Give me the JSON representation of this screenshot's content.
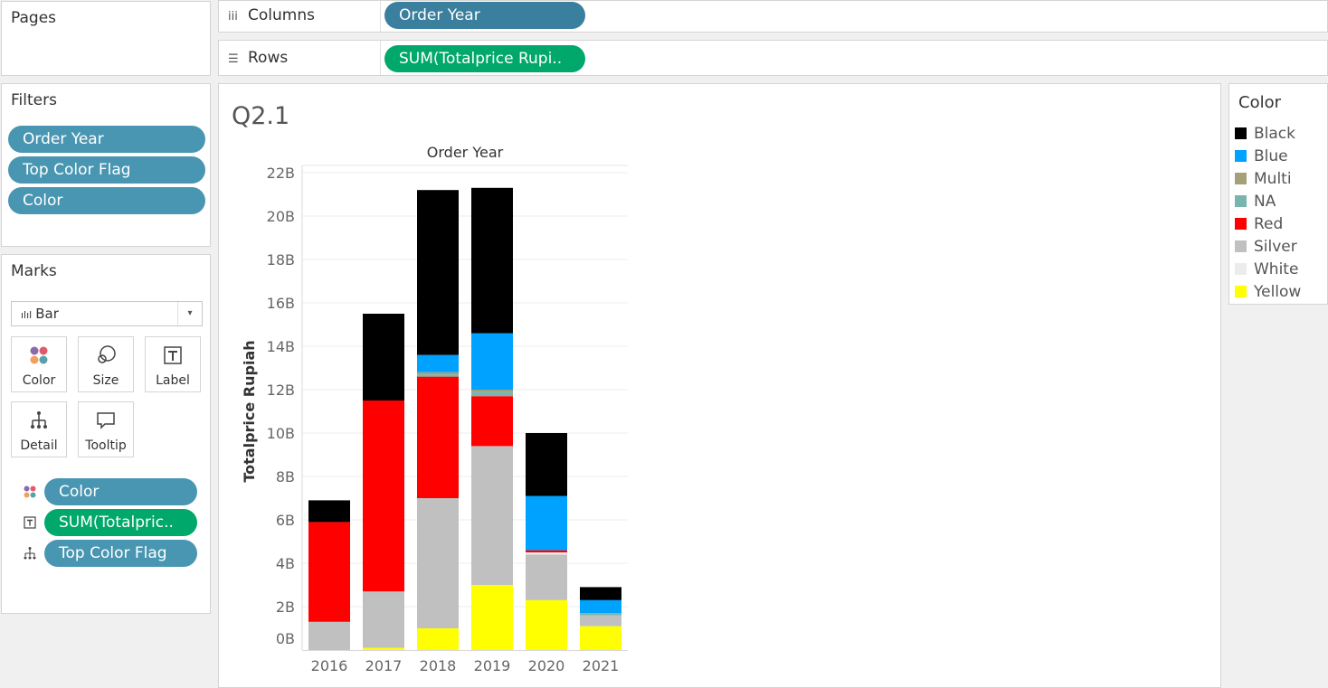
{
  "pages": {
    "title": "Pages"
  },
  "shelves": {
    "columns": {
      "label": "Columns",
      "icon": "columns-icon",
      "pill": "Order Year"
    },
    "rows": {
      "label": "Rows",
      "icon": "rows-icon",
      "pill": "SUM(Totalprice Rupi.."
    }
  },
  "filters": {
    "title": "Filters",
    "items": [
      "Order Year",
      "Top Color Flag",
      "Color"
    ]
  },
  "marks": {
    "title": "Marks",
    "mark_type": "Bar",
    "buttons": [
      "Color",
      "Size",
      "Label",
      "Detail",
      "Tooltip"
    ],
    "cards": [
      {
        "icon": "color-icon",
        "label": "Color",
        "kind": "dim"
      },
      {
        "icon": "label-icon",
        "label": "SUM(Totalpric..",
        "kind": "meas"
      },
      {
        "icon": "detail-icon",
        "label": "Top Color Flag",
        "kind": "dim"
      }
    ]
  },
  "sheet": {
    "title": "Q2.1"
  },
  "legend": {
    "title": "Color",
    "items": [
      {
        "label": "Black",
        "color": "#000000"
      },
      {
        "label": "Blue",
        "color": "#00a2ff"
      },
      {
        "label": "Multi",
        "color": "#a3a07a"
      },
      {
        "label": "NA",
        "color": "#78b5ae"
      },
      {
        "label": "Red",
        "color": "#ff0000"
      },
      {
        "label": "Silver",
        "color": "#c0c0c0"
      },
      {
        "label": "White",
        "color": "#ececec"
      },
      {
        "label": "Yellow",
        "color": "#ffff00"
      }
    ]
  },
  "chart_data": {
    "type": "bar",
    "stacked": true,
    "title": "Order Year",
    "xlabel": "",
    "ylabel": "Totalprice Rupiah",
    "ylim": [
      0,
      22
    ],
    "y_unit": "B",
    "yticks": [
      "0B",
      "2B",
      "4B",
      "6B",
      "8B",
      "10B",
      "12B",
      "14B",
      "16B",
      "18B",
      "20B",
      "22B"
    ],
    "categories": [
      "2016",
      "2017",
      "2018",
      "2019",
      "2020",
      "2021"
    ],
    "series": [
      {
        "name": "Yellow",
        "color": "#ffff00",
        "values": [
          0,
          0.1,
          1.0,
          3.0,
          2.3,
          1.1
        ]
      },
      {
        "name": "Silver",
        "color": "#c0c0c0",
        "values": [
          1.3,
          2.6,
          6.0,
          6.4,
          2.1,
          0.5
        ]
      },
      {
        "name": "White",
        "color": "#ececec",
        "values": [
          0,
          0,
          0,
          0,
          0.1,
          0
        ]
      },
      {
        "name": "Red",
        "color": "#ff0000",
        "values": [
          4.6,
          8.8,
          5.6,
          2.3,
          0.1,
          0
        ]
      },
      {
        "name": "NA",
        "color": "#78b5ae",
        "values": [
          0,
          0,
          0.1,
          0.2,
          0,
          0.1
        ]
      },
      {
        "name": "Multi",
        "color": "#a3a07a",
        "values": [
          0,
          0,
          0.1,
          0.1,
          0,
          0
        ]
      },
      {
        "name": "Blue",
        "color": "#00a2ff",
        "values": [
          0,
          0,
          0.8,
          2.6,
          2.5,
          0.6
        ]
      },
      {
        "name": "Black",
        "color": "#000000",
        "values": [
          1.0,
          4.0,
          7.6,
          6.7,
          2.9,
          0.6
        ]
      }
    ]
  }
}
